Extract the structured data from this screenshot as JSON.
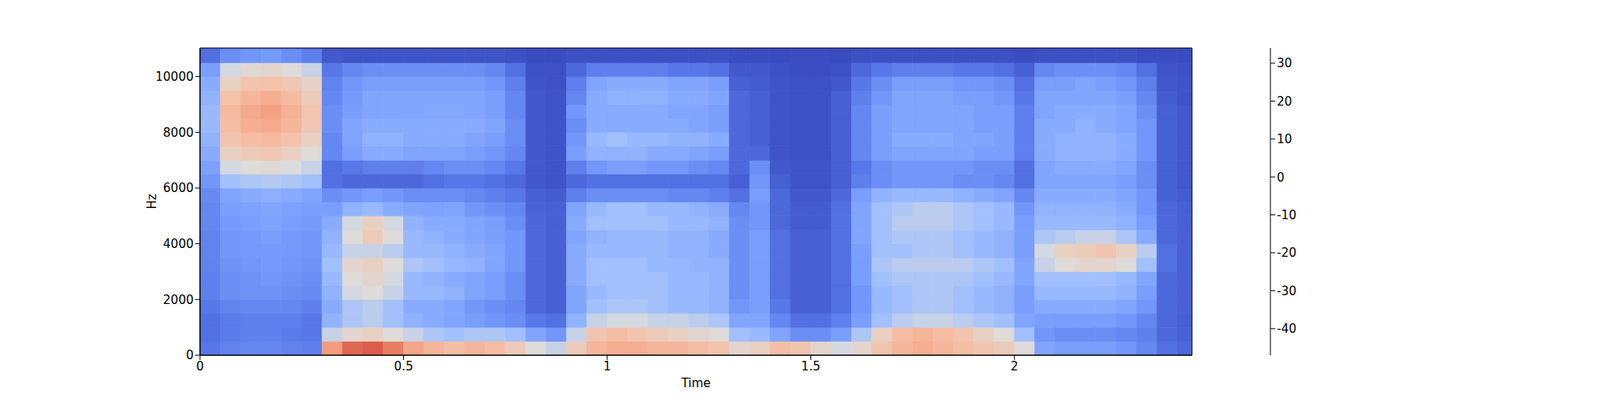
{
  "chart_data": {
    "type": "heatmap",
    "xlabel": "Time",
    "ylabel": "Hz",
    "xlim": [
      0,
      2.436
    ],
    "ylim": [
      0,
      11025
    ],
    "xticks": [
      0,
      0.5,
      1,
      1.5,
      2
    ],
    "yticks": [
      0,
      2000,
      4000,
      6000,
      8000,
      10000
    ],
    "x_edges": [
      0,
      0.05,
      0.1,
      0.15,
      0.2,
      0.25,
      0.3,
      0.35,
      0.4,
      0.45,
      0.5,
      0.55,
      0.6,
      0.65,
      0.7,
      0.75,
      0.8,
      0.85,
      0.9,
      0.95,
      1.0,
      1.05,
      1.1,
      1.15,
      1.2,
      1.25,
      1.3,
      1.35,
      1.4,
      1.45,
      1.5,
      1.55,
      1.6,
      1.65,
      1.7,
      1.75,
      1.8,
      1.85,
      1.9,
      1.95,
      2.0,
      2.05,
      2.1,
      2.15,
      2.2,
      2.25,
      2.3,
      2.35,
      2.4,
      2.436
    ],
    "y_edges": [
      0,
      500,
      1000,
      1500,
      2000,
      2500,
      3000,
      3500,
      4000,
      4500,
      5000,
      5500,
      6000,
      6500,
      7000,
      7500,
      8000,
      8500,
      9000,
      9500,
      10000,
      10500,
      11000,
      11025
    ],
    "cells": [
      [
        -36,
        -38,
        -38,
        -36,
        -34,
        -34,
        -33,
        -33,
        -33,
        -32,
        -32,
        -31,
        -28,
        -25,
        -22,
        -20,
        -18,
        -18,
        -20,
        -22,
        -26,
        -38,
        -40
      ],
      [
        -33,
        -35,
        -35,
        -33,
        -30,
        -30,
        -29,
        -28,
        -28,
        -27,
        -26,
        -24,
        -16,
        -8,
        -2,
        2,
        4,
        5,
        3,
        -2,
        -8,
        -30,
        -40
      ],
      [
        -32,
        -34,
        -34,
        -32,
        -29,
        -29,
        -28,
        -27,
        -27,
        -26,
        -25,
        -22,
        -14,
        -6,
        0,
        4,
        8,
        9,
        6,
        2,
        -5,
        -28,
        -40
      ],
      [
        -32,
        -34,
        -34,
        -32,
        -29,
        -28,
        -27,
        -27,
        -26,
        -25,
        -24,
        -21,
        -13,
        -5,
        1,
        5,
        9,
        11,
        8,
        3,
        -4,
        -27,
        -40
      ],
      [
        -33,
        -35,
        -34,
        -32,
        -30,
        -29,
        -28,
        -27,
        -27,
        -26,
        -25,
        -22,
        -14,
        -7,
        -2,
        3,
        6,
        7,
        5,
        1,
        -6,
        -30,
        -40
      ],
      [
        -34,
        -36,
        -36,
        -34,
        -31,
        -30,
        -29,
        -28,
        -28,
        -27,
        -26,
        -24,
        -16,
        -10,
        -6,
        -2,
        1,
        2,
        0,
        -3,
        -10,
        -34,
        -42
      ],
      [
        12,
        -10,
        -20,
        -22,
        -20,
        -18,
        -16,
        -18,
        -20,
        -22,
        -26,
        -30,
        -38,
        -38,
        -32,
        -32,
        -30,
        -30,
        -32,
        -33,
        -36,
        -44,
        -46
      ],
      [
        22,
        -4,
        -14,
        -14,
        -8,
        -6,
        -4,
        -10,
        -6,
        -8,
        -20,
        -28,
        -40,
        -36,
        -26,
        -24,
        -24,
        -26,
        -27,
        -28,
        -32,
        -45,
        -46
      ],
      [
        24,
        -2,
        -12,
        -12,
        -6,
        -4,
        -2,
        -10,
        0,
        -2,
        -18,
        -26,
        -40,
        -34,
        -22,
        -20,
        -22,
        -24,
        -24,
        -26,
        -30,
        -45,
        -46
      ],
      [
        18,
        -6,
        -16,
        -16,
        -10,
        -8,
        -6,
        -12,
        -6,
        -8,
        -22,
        -28,
        -40,
        -34,
        -22,
        -20,
        -22,
        -24,
        -24,
        -26,
        -30,
        -45,
        -46
      ],
      [
        10,
        -10,
        -20,
        -22,
        -18,
        -18,
        -14,
        -18,
        -18,
        -20,
        -24,
        -30,
        -40,
        -34,
        -24,
        -22,
        -22,
        -24,
        -24,
        -26,
        -30,
        -45,
        -46
      ],
      [
        6,
        -14,
        -22,
        -22,
        -18,
        -20,
        -16,
        -18,
        -20,
        -22,
        -25,
        -30,
        -38,
        -32,
        -24,
        -22,
        -22,
        -23,
        -24,
        -26,
        -30,
        -45,
        -46
      ],
      [
        4,
        -16,
        -24,
        -24,
        -20,
        -22,
        -18,
        -20,
        -22,
        -22,
        -24,
        -30,
        -36,
        -30,
        -24,
        -22,
        -22,
        -23,
        -24,
        -26,
        -30,
        -45,
        -46
      ],
      [
        6,
        -14,
        -26,
        -28,
        -24,
        -24,
        -20,
        -22,
        -24,
        -24,
        -28,
        -32,
        -36,
        -30,
        -26,
        -24,
        -22,
        -24,
        -24,
        -26,
        -30,
        -45,
        -46
      ],
      [
        4,
        -14,
        -28,
        -30,
        -26,
        -26,
        -24,
        -24,
        -26,
        -26,
        -30,
        -34,
        -38,
        -32,
        -28,
        -26,
        -24,
        -26,
        -26,
        -28,
        -32,
        -45,
        -46
      ],
      [
        0,
        -16,
        -30,
        -32,
        -30,
        -30,
        -28,
        -28,
        -28,
        -30,
        -32,
        -36,
        -40,
        -36,
        -32,
        -30,
        -30,
        -32,
        -32,
        -34,
        -38,
        -46,
        -47
      ],
      [
        -6,
        -24,
        -36,
        -40,
        -40,
        -40,
        -40,
        -40,
        -40,
        -40,
        -41,
        -42,
        -44,
        -44,
        -44,
        -44,
        -44,
        -44,
        -44,
        -45,
        -46,
        -47,
        -47
      ],
      [
        -10,
        -28,
        -38,
        -42,
        -42,
        -42,
        -42,
        -42,
        -42,
        -42,
        -42,
        -43,
        -45,
        -45,
        -45,
        -45,
        -45,
        -45,
        -45,
        -46,
        -46,
        -47,
        -47
      ],
      [
        0,
        -10,
        -20,
        -24,
        -24,
        -22,
        -22,
        -22,
        -24,
        -22,
        -24,
        -34,
        -40,
        -34,
        -26,
        -28,
        -30,
        -28,
        -32,
        -34,
        -40,
        -46,
        -47
      ],
      [
        6,
        2,
        -10,
        -16,
        -18,
        -16,
        -16,
        -18,
        -20,
        -16,
        -18,
        -30,
        -38,
        -28,
        -20,
        -18,
        -22,
        -22,
        -22,
        -24,
        -34,
        -46,
        -47
      ],
      [
        8,
        4,
        -8,
        -14,
        -16,
        -16,
        -16,
        -18,
        -18,
        -16,
        -16,
        -30,
        -38,
        -26,
        -20,
        -16,
        -22,
        -22,
        -20,
        -22,
        -34,
        -46,
        -47
      ],
      [
        8,
        2,
        -8,
        -14,
        -16,
        -16,
        -16,
        -18,
        -18,
        -16,
        -16,
        -30,
        -38,
        -26,
        -20,
        -18,
        -22,
        -22,
        -20,
        -22,
        -34,
        -46,
        -47
      ],
      [
        6,
        0,
        -10,
        -16,
        -16,
        -16,
        -18,
        -18,
        -18,
        -16,
        -18,
        -30,
        -38,
        -28,
        -22,
        -18,
        -22,
        -22,
        -20,
        -22,
        -34,
        -46,
        -47
      ],
      [
        6,
        -2,
        -10,
        -18,
        -18,
        -18,
        -18,
        -20,
        -20,
        -18,
        -18,
        -32,
        -38,
        -28,
        -22,
        -20,
        -22,
        -24,
        -22,
        -24,
        -36,
        -46,
        -47
      ],
      [
        4,
        -4,
        -12,
        -18,
        -18,
        -18,
        -20,
        -20,
        -20,
        -18,
        -20,
        -32,
        -38,
        -30,
        -24,
        -20,
        -24,
        -24,
        -22,
        -24,
        -36,
        -46,
        -47
      ],
      [
        2,
        -6,
        -14,
        -20,
        -20,
        -20,
        -20,
        -22,
        -22,
        -20,
        -22,
        -34,
        -38,
        -32,
        -26,
        -22,
        -26,
        -26,
        -24,
        -26,
        -38,
        -46,
        -47
      ],
      [
        -4,
        -16,
        -24,
        -28,
        -30,
        -30,
        -30,
        -30,
        -30,
        -30,
        -32,
        -38,
        -42,
        -40,
        -40,
        -40,
        -40,
        -40,
        -40,
        -42,
        -44,
        -47,
        -47
      ],
      [
        -2,
        -18,
        -24,
        -26,
        -26,
        -26,
        -26,
        -26,
        -26,
        -28,
        -28,
        -26,
        -28,
        -30,
        -40,
        -42,
        -42,
        -42,
        -42,
        -43,
        -44,
        -47,
        -47
      ],
      [
        4,
        -24,
        -32,
        -36,
        -38,
        -38,
        -38,
        -38,
        -38,
        -40,
        -40,
        -40,
        -42,
        -44,
        -45,
        -45,
        -45,
        -45,
        -45,
        -45,
        -46,
        -47,
        -47
      ],
      [
        2,
        -30,
        -38,
        -42,
        -42,
        -42,
        -42,
        -42,
        -42,
        -43,
        -43,
        -44,
        -45,
        -45,
        -46,
        -46,
        -46,
        -46,
        -46,
        -46,
        -47,
        -47,
        -47
      ],
      [
        -4,
        -30,
        -38,
        -42,
        -42,
        -42,
        -42,
        -42,
        -42,
        -43,
        -43,
        -44,
        -45,
        -45,
        -46,
        -46,
        -46,
        -46,
        -46,
        -46,
        -47,
        -47,
        -47
      ],
      [
        -8,
        -26,
        -34,
        -38,
        -38,
        -38,
        -38,
        -38,
        -38,
        -38,
        -38,
        -40,
        -42,
        -42,
        -42,
        -42,
        -42,
        -42,
        -42,
        -44,
        -46,
        -47,
        -47
      ],
      [
        -4,
        -14,
        -26,
        -28,
        -28,
        -26,
        -26,
        -26,
        -24,
        -24,
        -24,
        -26,
        -34,
        -36,
        -32,
        -32,
        -32,
        -32,
        -34,
        -36,
        -40,
        -46,
        -47
      ],
      [
        2,
        -2,
        -16,
        -18,
        -18,
        -16,
        -14,
        -16,
        -16,
        -16,
        -16,
        -20,
        -30,
        -30,
        -26,
        -26,
        -26,
        -26,
        -28,
        -30,
        -36,
        -46,
        -47
      ],
      [
        6,
        4,
        -12,
        -16,
        -16,
        -14,
        -12,
        -16,
        -14,
        -12,
        -14,
        -18,
        -28,
        -28,
        -24,
        -22,
        -24,
        -24,
        -24,
        -26,
        -34,
        -46,
        -47
      ],
      [
        8,
        6,
        -10,
        -14,
        -14,
        -14,
        -12,
        -14,
        -14,
        -12,
        -12,
        -18,
        -28,
        -28,
        -24,
        -22,
        -24,
        -24,
        -24,
        -26,
        -34,
        -46,
        -47
      ],
      [
        6,
        4,
        -10,
        -14,
        -14,
        -14,
        -12,
        -14,
        -14,
        -12,
        -12,
        -18,
        -28,
        -28,
        -24,
        -22,
        -24,
        -24,
        -24,
        -26,
        -34,
        -46,
        -47
      ],
      [
        4,
        2,
        -12,
        -16,
        -16,
        -14,
        -12,
        -16,
        -16,
        -14,
        -14,
        -20,
        -30,
        -28,
        -24,
        -24,
        -24,
        -24,
        -26,
        -28,
        -36,
        -46,
        -47
      ],
      [
        2,
        -2,
        -14,
        -18,
        -18,
        -16,
        -14,
        -18,
        -18,
        -16,
        -16,
        -22,
        -30,
        -30,
        -26,
        -24,
        -26,
        -26,
        -26,
        -28,
        -36,
        -46,
        -47
      ],
      [
        0,
        -6,
        -16,
        -20,
        -20,
        -18,
        -16,
        -20,
        -20,
        -18,
        -18,
        -24,
        -32,
        -30,
        -26,
        -26,
        -26,
        -26,
        -28,
        -30,
        -38,
        -46,
        -47
      ],
      [
        -6,
        -16,
        -24,
        -26,
        -26,
        -24,
        -24,
        -26,
        -26,
        -26,
        -28,
        -32,
        -38,
        -38,
        -34,
        -34,
        -34,
        -34,
        -36,
        -38,
        -42,
        -47,
        -47
      ],
      [
        -24,
        -28,
        -26,
        -22,
        -18,
        -16,
        -10,
        -8,
        -14,
        -18,
        -20,
        -22,
        -24,
        -24,
        -22,
        -22,
        -22,
        -24,
        -24,
        -26,
        -32,
        -46,
        -47
      ],
      [
        -26,
        -30,
        -26,
        -22,
        -18,
        -16,
        -6,
        -2,
        -12,
        -18,
        -20,
        -22,
        -24,
        -22,
        -20,
        -20,
        -22,
        -22,
        -24,
        -26,
        -30,
        -46,
        -47
      ],
      [
        -26,
        -30,
        -26,
        -22,
        -18,
        -16,
        -4,
        0,
        -10,
        -18,
        -20,
        -22,
        -24,
        -22,
        -20,
        -20,
        -20,
        -22,
        -24,
        -24,
        -30,
        -46,
        -47
      ],
      [
        -26,
        -30,
        -26,
        -22,
        -18,
        -16,
        -4,
        2,
        -10,
        -18,
        -20,
        -22,
        -24,
        -22,
        -20,
        -20,
        -22,
        -22,
        -24,
        -26,
        -30,
        -46,
        -47
      ],
      [
        -28,
        -32,
        -28,
        -24,
        -20,
        -18,
        -6,
        -2,
        -14,
        -20,
        -22,
        -24,
        -26,
        -24,
        -22,
        -22,
        -24,
        -24,
        -26,
        -28,
        -32,
        -46,
        -47
      ],
      [
        -32,
        -34,
        -32,
        -28,
        -26,
        -24,
        -16,
        -12,
        -22,
        -26,
        -28,
        -28,
        -30,
        -30,
        -28,
        -28,
        -28,
        -30,
        -32,
        -34,
        -38,
        -47,
        -47
      ],
      [
        -38,
        -40,
        -40,
        -40,
        -40,
        -40,
        -38,
        -38,
        -40,
        -40,
        -40,
        -42,
        -42,
        -42,
        -42,
        -42,
        -42,
        -42,
        -43,
        -44,
        -45,
        -47,
        -47
      ],
      [
        -40,
        -42,
        -42,
        -42,
        -42,
        -42,
        -42,
        -42,
        -42,
        -42,
        -42,
        -43,
        -44,
        -44,
        -44,
        -44,
        -44,
        -44,
        -45,
        -45,
        -46,
        -47,
        -47
      ]
    ],
    "colorbar": {
      "range": [
        -47,
        34
      ],
      "ticks": [
        -40,
        -30,
        -20,
        -10,
        0,
        10,
        20,
        30
      ]
    }
  }
}
